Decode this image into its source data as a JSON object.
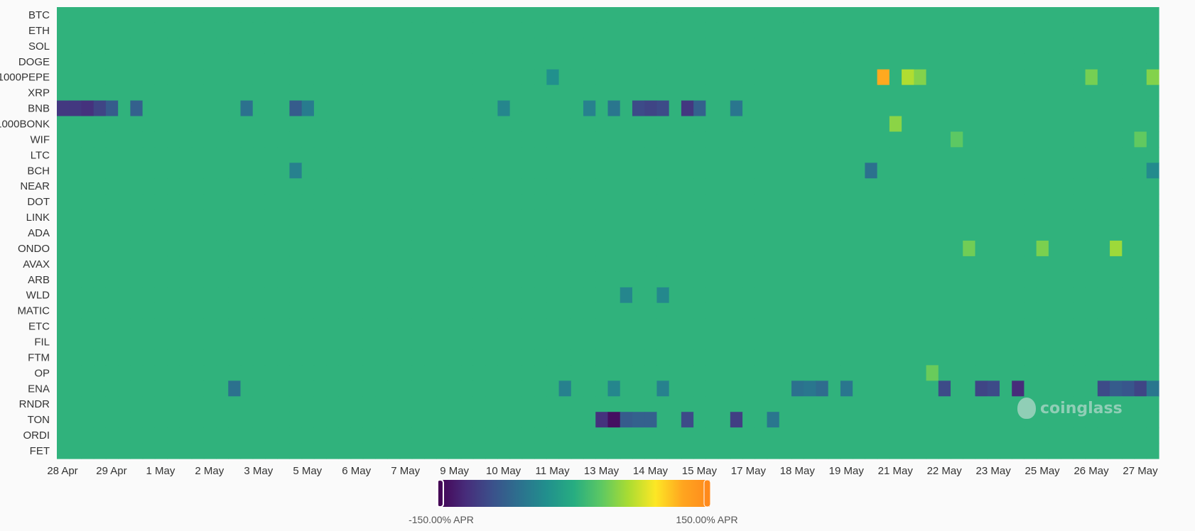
{
  "chart_data": {
    "type": "heatmap",
    "title": "",
    "xlabel": "",
    "ylabel": "",
    "y_categories": [
      "BTC",
      "ETH",
      "SOL",
      "DOGE",
      "1000PEPE",
      "XRP",
      "BNB",
      "1000BONK",
      "WIF",
      "LTC",
      "BCH",
      "NEAR",
      "DOT",
      "LINK",
      "ADA",
      "ONDO",
      "AVAX",
      "ARB",
      "WLD",
      "MATIC",
      "ETC",
      "FIL",
      "FTM",
      "OP",
      "ENA",
      "RNDR",
      "TON",
      "ORDI",
      "FET"
    ],
    "x_tick_labels": [
      "28 Apr",
      "29 Apr",
      "1 May",
      "2 May",
      "3 May",
      "5 May",
      "6 May",
      "7 May",
      "9 May",
      "10 May",
      "11 May",
      "13 May",
      "14 May",
      "15 May",
      "17 May",
      "18 May",
      "19 May",
      "21 May",
      "22 May",
      "23 May",
      "25 May",
      "26 May",
      "27 May"
    ],
    "columns": 90,
    "color_scale": {
      "min": -150,
      "max": 150,
      "unit": "APR",
      "colormap": [
        "#440154",
        "#472c7a",
        "#3b518b",
        "#2c718e",
        "#21908d",
        "#27ad81",
        "#5cc863",
        "#aadc32",
        "#fde725",
        "#ffa51f",
        "#ff8a1c"
      ],
      "min_label": "-150.00% APR",
      "max_label": "150.00% APR"
    },
    "baseline_value": 5,
    "highlighted_cells": [
      {
        "row": "1000PEPE",
        "col": 67,
        "value": 118
      },
      {
        "row": "1000PEPE",
        "col": 69,
        "value": 62
      },
      {
        "row": "1000PEPE",
        "col": 70,
        "value": 45
      },
      {
        "row": "1000PEPE",
        "col": 84,
        "value": 40
      },
      {
        "row": "1000PEPE",
        "col": 89,
        "value": 45
      },
      {
        "row": "1000PEPE",
        "col": 40,
        "value": -30
      },
      {
        "row": "BNB",
        "col": 0,
        "value": -110
      },
      {
        "row": "BNB",
        "col": 1,
        "value": -110
      },
      {
        "row": "BNB",
        "col": 2,
        "value": -115
      },
      {
        "row": "BNB",
        "col": 3,
        "value": -100
      },
      {
        "row": "BNB",
        "col": 4,
        "value": -80
      },
      {
        "row": "BNB",
        "col": 6,
        "value": -75
      },
      {
        "row": "BNB",
        "col": 15,
        "value": -60
      },
      {
        "row": "BNB",
        "col": 19,
        "value": -80
      },
      {
        "row": "BNB",
        "col": 20,
        "value": -50
      },
      {
        "row": "BNB",
        "col": 36,
        "value": -40
      },
      {
        "row": "BNB",
        "col": 43,
        "value": -45
      },
      {
        "row": "BNB",
        "col": 45,
        "value": -55
      },
      {
        "row": "BNB",
        "col": 47,
        "value": -95
      },
      {
        "row": "BNB",
        "col": 48,
        "value": -100
      },
      {
        "row": "BNB",
        "col": 49,
        "value": -95
      },
      {
        "row": "BNB",
        "col": 51,
        "value": -110
      },
      {
        "row": "BNB",
        "col": 52,
        "value": -75
      },
      {
        "row": "BNB",
        "col": 55,
        "value": -55
      },
      {
        "row": "1000BONK",
        "col": 68,
        "value": 48
      },
      {
        "row": "WIF",
        "col": 73,
        "value": 30
      },
      {
        "row": "WIF",
        "col": 88,
        "value": 32
      },
      {
        "row": "BCH",
        "col": 19,
        "value": -45
      },
      {
        "row": "BCH",
        "col": 66,
        "value": -60
      },
      {
        "row": "BCH",
        "col": 89,
        "value": -35
      },
      {
        "row": "ONDO",
        "col": 74,
        "value": 38
      },
      {
        "row": "ONDO",
        "col": 80,
        "value": 42
      },
      {
        "row": "ONDO",
        "col": 86,
        "value": 55
      },
      {
        "row": "WLD",
        "col": 46,
        "value": -40
      },
      {
        "row": "WLD",
        "col": 49,
        "value": -38
      },
      {
        "row": "OP",
        "col": 71,
        "value": 35
      },
      {
        "row": "ENA",
        "col": 14,
        "value": -60
      },
      {
        "row": "ENA",
        "col": 41,
        "value": -45
      },
      {
        "row": "ENA",
        "col": 45,
        "value": -40
      },
      {
        "row": "ENA",
        "col": 49,
        "value": -45
      },
      {
        "row": "ENA",
        "col": 60,
        "value": -60
      },
      {
        "row": "ENA",
        "col": 61,
        "value": -55
      },
      {
        "row": "ENA",
        "col": 62,
        "value": -65
      },
      {
        "row": "ENA",
        "col": 64,
        "value": -55
      },
      {
        "row": "ENA",
        "col": 72,
        "value": -95
      },
      {
        "row": "ENA",
        "col": 75,
        "value": -100
      },
      {
        "row": "ENA",
        "col": 76,
        "value": -95
      },
      {
        "row": "ENA",
        "col": 78,
        "value": -120
      },
      {
        "row": "ENA",
        "col": 85,
        "value": -95
      },
      {
        "row": "ENA",
        "col": 86,
        "value": -80
      },
      {
        "row": "ENA",
        "col": 87,
        "value": -85
      },
      {
        "row": "ENA",
        "col": 88,
        "value": -100
      },
      {
        "row": "ENA",
        "col": 89,
        "value": -55
      },
      {
        "row": "TON",
        "col": 44,
        "value": -115
      },
      {
        "row": "TON",
        "col": 45,
        "value": -140
      },
      {
        "row": "TON",
        "col": 46,
        "value": -80
      },
      {
        "row": "TON",
        "col": 47,
        "value": -75
      },
      {
        "row": "TON",
        "col": 48,
        "value": -75
      },
      {
        "row": "TON",
        "col": 51,
        "value": -95
      },
      {
        "row": "TON",
        "col": 55,
        "value": -105
      },
      {
        "row": "TON",
        "col": 58,
        "value": -55
      }
    ],
    "grid": false,
    "legend": "bottom-center colorbar"
  },
  "watermark": {
    "text": "coinglass"
  }
}
